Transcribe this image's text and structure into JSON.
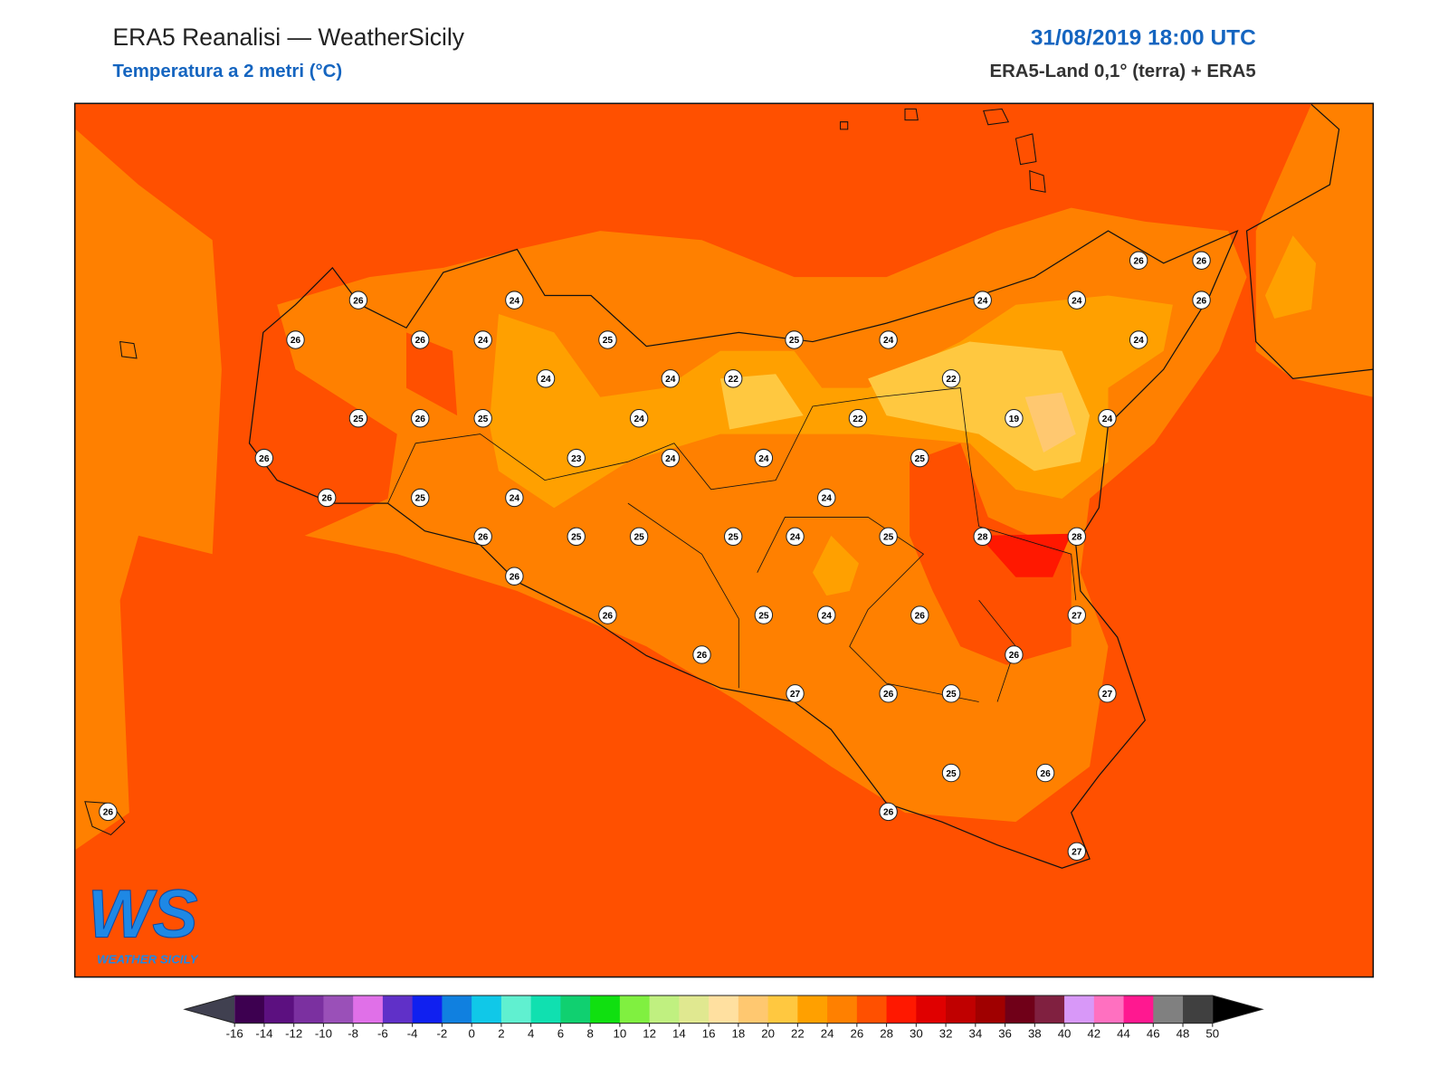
{
  "header": {
    "title": "ERA5 Reanalisi — WeatherSicily",
    "subtitle": "Temperatura a 2 metri (°C)",
    "datetime": "31/08/2019 18:00 UTC",
    "source": "ERA5-Land 0,1° (terra) + ERA5"
  },
  "logo": {
    "initials": "WS",
    "name": "WEATHER SICILY"
  },
  "stations": [
    26,
    24,
    26,
    26,
    24,
    25,
    25,
    24,
    24,
    24,
    26,
    26,
    26,
    24,
    24,
    24,
    22,
    22,
    25,
    26,
    25,
    24,
    22,
    19,
    24,
    26,
    23,
    24,
    24,
    25,
    26,
    25,
    24,
    24,
    26,
    25,
    25,
    25,
    24,
    25,
    28,
    28,
    26,
    26,
    25,
    24,
    26,
    27,
    26,
    26,
    27,
    26,
    25,
    27,
    25,
    26,
    26,
    26,
    27
  ],
  "colorbar": {
    "ticks": [
      -16,
      -14,
      -12,
      -10,
      -8,
      -6,
      -4,
      -2,
      0,
      2,
      4,
      6,
      8,
      10,
      12,
      14,
      16,
      18,
      20,
      22,
      24,
      26,
      28,
      30,
      32,
      34,
      36,
      38,
      40,
      42,
      44,
      46,
      48,
      50
    ],
    "colors": [
      "#3d0050",
      "#5c1080",
      "#7b30a0",
      "#9a50b8",
      "#e070e8",
      "#6030c8",
      "#1020f0",
      "#1080e0",
      "#10c8e8",
      "#60f0d0",
      "#10e0b0",
      "#10d070",
      "#10e010",
      "#80f040",
      "#c0f080",
      "#e0e890",
      "#ffe0a0",
      "#ffc870",
      "#ffc840",
      "#ffa000",
      "#ff8000",
      "#ff5000",
      "#ff1800",
      "#e00000",
      "#c00000",
      "#a00000",
      "#700018",
      "#802040",
      "#d898f8",
      "#ff70c0",
      "#ff1890",
      "#808080",
      "#404040"
    ],
    "under_color": "#404050",
    "over_color": "#000000"
  }
}
